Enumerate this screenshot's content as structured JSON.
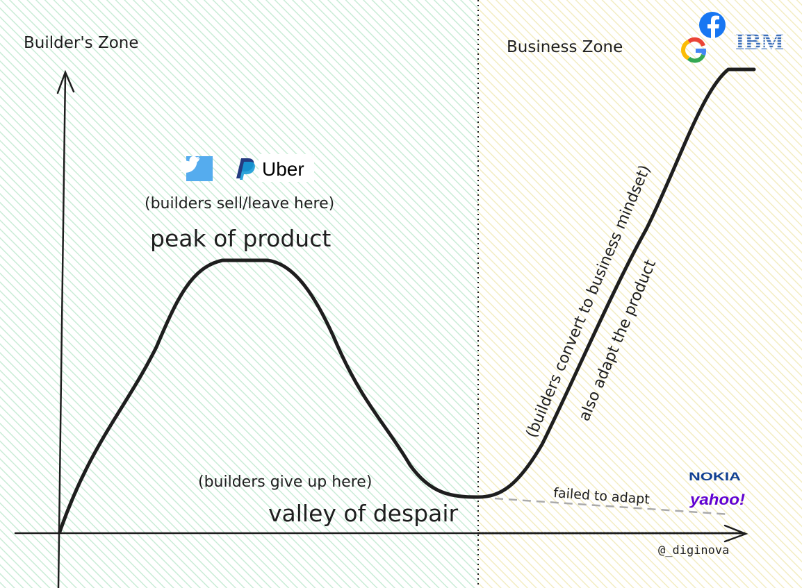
{
  "zones": {
    "builders": {
      "label": "Builder's Zone",
      "tint": "#dcf3e6"
    },
    "business": {
      "label": "Business Zone",
      "tint": "#f8f4d4"
    }
  },
  "peak": {
    "title": "peak of product",
    "note": "(builders sell/leave here)",
    "logos": [
      "Twitter",
      "PayPal",
      "Uber"
    ]
  },
  "valley": {
    "title": "valley of despair",
    "note": "(builders give up here)"
  },
  "rise": {
    "note_line1": "(builders convert to business mindset)",
    "note_line2": "also adapt the product",
    "logos": [
      "Facebook",
      "Google",
      "IBM"
    ]
  },
  "failed": {
    "label": "failed to adapt",
    "logos": [
      "NOKIA",
      "yahoo!"
    ]
  },
  "credit": "@_diginova",
  "colors": {
    "ink": "#1e1e1e",
    "twitter": "#55acee",
    "paypal_dark": "#253b80",
    "paypal_light": "#179bd7",
    "facebook": "#1877f2",
    "ibm": "#3d6fb8",
    "nokia": "#124191",
    "yahoo": "#6001d2",
    "dashed": "#aaaaaa"
  }
}
